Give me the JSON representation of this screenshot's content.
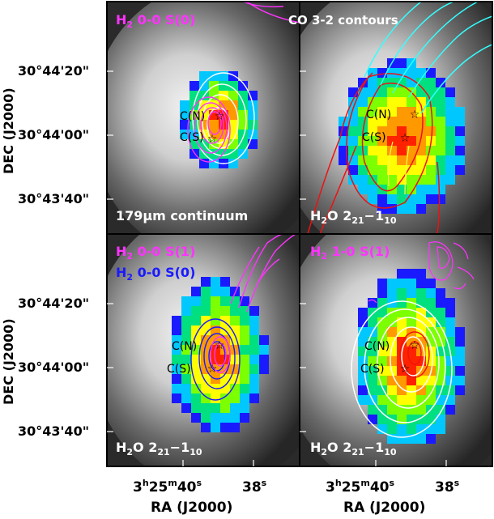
{
  "axis": {
    "ylabel": "DEC (J2000)",
    "xlabel": "RA (J2000)",
    "dec_ticks": [
      "30°44'20\"",
      "30°44'00\"",
      "30°43'40\""
    ],
    "ra_tick_left": {
      "h": "3",
      "hs": "h",
      "m": "25",
      "ms": "m",
      "s": "40",
      "ss": "s"
    },
    "ra_tick_right": {
      "s": "38",
      "ss": "s"
    }
  },
  "panels": {
    "tl": {
      "title_h": "H",
      "title_sub": "2",
      "title_rest": " 0-0 S(0)",
      "title_color": "#ff33ff",
      "top_right": "CO 3-2 contours",
      "bottom": "179µm continuum",
      "source_n": "C(N)",
      "source_s": "C(S)"
    },
    "tr": {
      "bottom_main": "H",
      "bottom_sub1": "2",
      "bottom_o": "O 2",
      "bottom_sub2": "21",
      "bottom_dash": "−1",
      "bottom_sub3": "10",
      "source_n": "C(N)",
      "source_s": "C(S)"
    },
    "bl": {
      "title1_h": "H",
      "title1_sub": "2",
      "title1_rest": " 0-0 S(1)",
      "title1_color": "#ff33ff",
      "title2_h": "H",
      "title2_sub": "2",
      "title2_rest": " 0-0 S(0)",
      "title2_color": "#1a1aff",
      "bottom_main": "H",
      "bottom_sub1": "2",
      "bottom_o": "O 2",
      "bottom_sub2": "21",
      "bottom_dash": "−1",
      "bottom_sub3": "10",
      "source_n": "C(N)",
      "source_s": "C(S)"
    },
    "br": {
      "title_h": "H",
      "title_sub": "2",
      "title_rest": " 1-0 S(1)",
      "title_color": "#ff33ff",
      "bottom_main": "H",
      "bottom_sub1": "2",
      "bottom_o": "O 2",
      "bottom_sub2": "21",
      "bottom_dash": "−1",
      "bottom_sub3": "10",
      "source_n": "C(N)",
      "source_s": "C(S)"
    }
  },
  "colors": {
    "magenta": "#ff33ff",
    "cyan": "#33ffff",
    "red": "#ee1111",
    "blue": "#1a1aff",
    "white": "#ffffff"
  }
}
